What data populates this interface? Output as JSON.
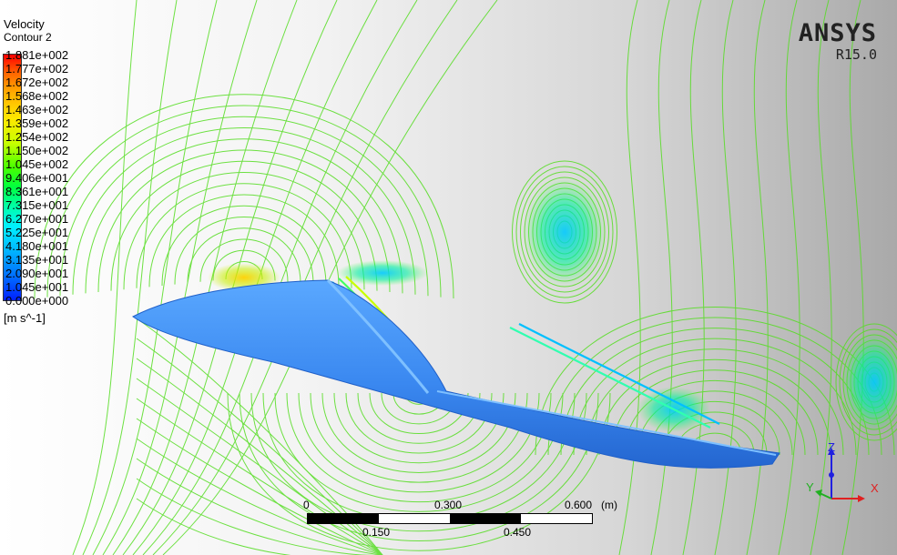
{
  "legend": {
    "variable": "Velocity",
    "name": "Contour 2",
    "units": "[m s^-1]",
    "ticks": [
      "1.881e+002",
      "1.777e+002",
      "1.672e+002",
      "1.568e+002",
      "1.463e+002",
      "1.359e+002",
      "1.254e+002",
      "1.150e+002",
      "1.045e+002",
      "9.406e+001",
      "8.361e+001",
      "7.315e+001",
      "6.270e+001",
      "5.225e+001",
      "4.180e+001",
      "3.135e+001",
      "2.090e+001",
      "1.045e+001",
      "0.000e+000"
    ]
  },
  "brand": {
    "logo": "ANSYS",
    "version": "R15.0"
  },
  "scale": {
    "top_labels": [
      "0",
      "0.300",
      "0.600"
    ],
    "bottom_labels": [
      "0.150",
      "0.450"
    ],
    "unit": "(m)"
  },
  "axes": {
    "x": "X",
    "y": "Y",
    "z": "Z"
  },
  "colors": {
    "contour_line": "#55dd22",
    "body": "#3a88f0",
    "body_edge": "#1f5fc8",
    "axis_x": "#e02020",
    "axis_y": "#20b020",
    "axis_z": "#2020e0"
  }
}
